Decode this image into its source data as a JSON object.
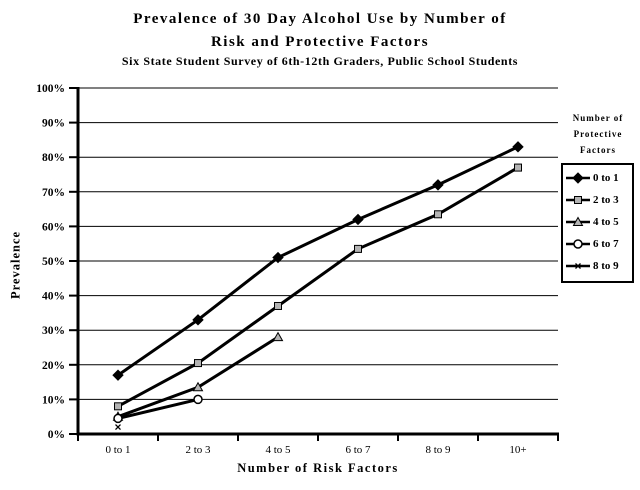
{
  "title": {
    "line1": "Prevalence of 30 Day Alcohol Use by Number of",
    "line2": "Risk and Protective Factors"
  },
  "subtitle": "Six State Student Survey of 6th-12th Graders, Public School Students",
  "y_axis": {
    "title": "Prevalence"
  },
  "x_axis": {
    "title": "Number of Risk Factors"
  },
  "legend": {
    "title_lines": [
      "Number of",
      "Protective",
      "Factors"
    ]
  },
  "chart_data": {
    "type": "line",
    "title": "Prevalence of 30 Day Alcohol Use by Number of Risk and Protective Factors",
    "subtitle": "Six State Student Survey of 6th-12th Graders, Public School Students",
    "xlabel": "Number of Risk Factors",
    "ylabel": "Prevalence",
    "ylim": [
      0,
      100
    ],
    "y_tick_step": 10,
    "y_tick_labels": [
      "0%",
      "10%",
      "20%",
      "30%",
      "40%",
      "50%",
      "60%",
      "70%",
      "80%",
      "90%",
      "100%"
    ],
    "categories": [
      "0 to 1",
      "2 to 3",
      "4 to 5",
      "6 to 7",
      "8 to 9",
      "10+"
    ],
    "grid": "horizontal",
    "legend_title": "Number of Protective Factors",
    "legend_position": "right",
    "line_color": "#000000",
    "series": [
      {
        "name": "0 to 1",
        "marker": "diamond",
        "marker_fill": "#000000",
        "values": [
          17,
          33,
          51,
          62,
          72,
          83
        ]
      },
      {
        "name": "2 to 3",
        "marker": "square",
        "marker_fill": "#b3b3b3",
        "values": [
          8,
          20.5,
          37,
          53.5,
          63.5,
          77
        ]
      },
      {
        "name": "4 to 5",
        "marker": "triangle",
        "marker_fill": "#b3b3b3",
        "values": [
          5,
          13.5,
          28,
          null,
          null,
          null
        ]
      },
      {
        "name": "6 to 7",
        "marker": "circle",
        "marker_fill": "#ffffff",
        "values": [
          4.5,
          10,
          null,
          null,
          null,
          null
        ]
      },
      {
        "name": "8 to 9",
        "marker": "x",
        "marker_fill": "#000000",
        "values": [
          2,
          null,
          null,
          null,
          null,
          null
        ]
      }
    ]
  }
}
